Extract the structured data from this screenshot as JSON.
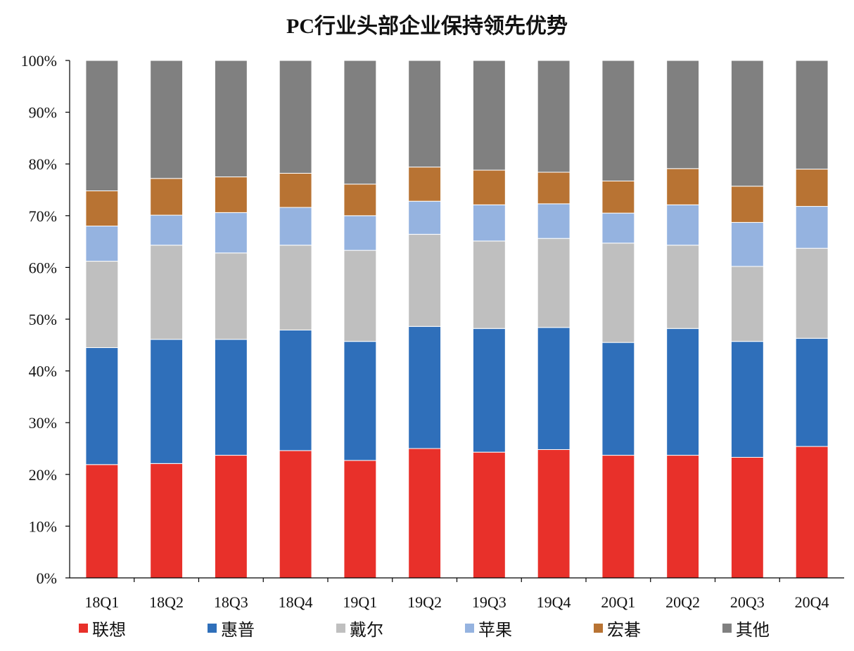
{
  "chart_data": {
    "type": "bar",
    "stacked": true,
    "title": "PC行业头部企业保持领先优势",
    "xlabel": "",
    "ylabel": "",
    "ylim": [
      0,
      100
    ],
    "yticks": [
      "0%",
      "10%",
      "20%",
      "30%",
      "40%",
      "50%",
      "60%",
      "70%",
      "80%",
      "90%",
      "100%"
    ],
    "grid": false,
    "legend_position": "bottom",
    "categories": [
      "18Q1",
      "18Q2",
      "18Q3",
      "18Q4",
      "19Q1",
      "19Q2",
      "19Q3",
      "19Q4",
      "20Q1",
      "20Q2",
      "20Q3",
      "20Q4"
    ],
    "series": [
      {
        "name": "联想",
        "color": "#e8302a",
        "values": [
          21.9,
          22.1,
          23.7,
          24.6,
          22.7,
          25.0,
          24.3,
          24.8,
          23.7,
          23.7,
          23.3,
          25.4
        ]
      },
      {
        "name": "惠普",
        "color": "#2f6fba",
        "values": [
          22.6,
          24.0,
          22.4,
          23.3,
          23.0,
          23.6,
          23.9,
          23.6,
          21.8,
          24.5,
          22.4,
          20.9
        ]
      },
      {
        "name": "戴尔",
        "color": "#bfbfbf",
        "values": [
          16.7,
          18.2,
          16.7,
          16.4,
          17.6,
          17.8,
          16.9,
          17.2,
          19.2,
          16.1,
          14.5,
          17.4
        ]
      },
      {
        "name": "苹果",
        "color": "#95b3e0",
        "values": [
          6.8,
          5.8,
          7.8,
          7.3,
          6.7,
          6.4,
          7.0,
          6.7,
          5.8,
          7.8,
          8.5,
          8.1
        ]
      },
      {
        "name": "宏碁",
        "color": "#b87333",
        "values": [
          6.8,
          7.1,
          6.9,
          6.6,
          6.1,
          6.6,
          6.7,
          6.1,
          6.2,
          7.0,
          7.0,
          7.2
        ]
      },
      {
        "name": "其他",
        "color": "#808080",
        "values": [
          25.2,
          22.8,
          22.5,
          21.8,
          23.9,
          20.6,
          21.2,
          21.6,
          23.3,
          20.9,
          24.3,
          21.0
        ]
      }
    ]
  }
}
